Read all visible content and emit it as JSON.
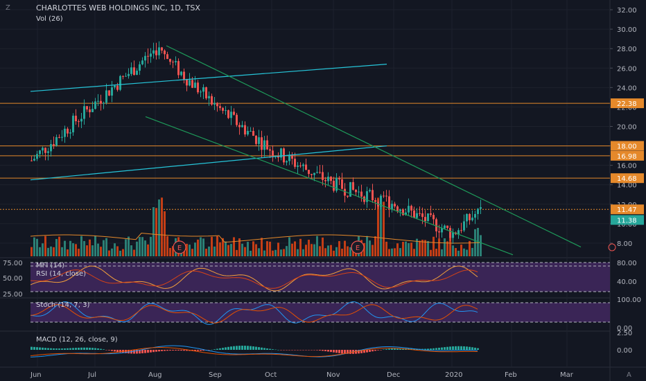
{
  "header": {
    "title": "CHARLOTTES WEB HOLDINGS INC, 1D, TSX",
    "vol_label": "Vol (26)"
  },
  "colors": {
    "background": "#131722",
    "up": "#26a69a",
    "down": "#ef5350",
    "vol_up": "#2f8c7e",
    "vol_down": "#d84315",
    "trend_cyan": "#26c6da",
    "trend_green": "#1e9b5a",
    "hline": "#e5892b",
    "purple_band": "#3a2556",
    "mfi_line": "#f3a03b",
    "rsi_line": "#d84315",
    "stoch_k": "#2196f3",
    "stoch_d": "#e65100",
    "macd_line": "#2196f3",
    "signal_line": "#e65100"
  },
  "chart_data": [
    {
      "type": "candlestick",
      "title": "CHARLOTTES WEB HOLDINGS INC, 1D, TSX",
      "x_tick_labels": [
        "Jun",
        "Jul",
        "Aug",
        "Sep",
        "Oct",
        "Nov",
        "Dec",
        "2020",
        "Feb",
        "Mar"
      ],
      "y_tick_labels": [
        "32.00",
        "30.00",
        "28.00",
        "26.00",
        "24.00",
        "22.00",
        "20.00",
        "18.00",
        "16.00",
        "14.00",
        "12.00",
        "10.00",
        "8.00"
      ],
      "ylim": [
        6.5,
        33.0
      ],
      "price_tags": [
        {
          "value": 22.38,
          "label": "22.38",
          "color": "#e5892b"
        },
        {
          "value": 18.0,
          "label": "18.00",
          "color": "#e5892b"
        },
        {
          "value": 16.98,
          "label": "16.98",
          "color": "#e5892b"
        },
        {
          "value": 14.68,
          "label": "14.68",
          "color": "#e5892b"
        },
        {
          "value": 11.47,
          "label": "11.47",
          "color": "#e5892b"
        },
        {
          "value": 11.38,
          "label": "11.38",
          "color": "#26a69a"
        }
      ],
      "horizontal_levels": [
        22.38,
        18.0,
        16.98,
        14.68,
        11.47
      ],
      "monthly_path": [
        {
          "month": "Jun",
          "close": 16.5
        },
        {
          "month": "Jul",
          "close": 22.5
        },
        {
          "month": "Aug",
          "close": 28.0
        },
        {
          "month": "Sep",
          "close": 22.0
        },
        {
          "month": "Oct",
          "close": 17.5
        },
        {
          "month": "Nov",
          "close": 14.0
        },
        {
          "month": "Dec",
          "close": 12.0
        },
        {
          "month": "2020",
          "close": 9.0
        },
        {
          "month": "Jan end",
          "close": 11.47
        }
      ],
      "earnings_markers": [
        "E",
        "E"
      ]
    },
    {
      "type": "line",
      "title": "MFI (14)",
      "series_names": [
        "MFI (14)",
        "RSI (14, close)"
      ],
      "left_tick_labels": [
        "75.00",
        "50.00",
        "25.00"
      ],
      "right_tick_labels": [
        "80.00",
        "40.00"
      ],
      "ylim": [
        10,
        90
      ]
    },
    {
      "type": "line",
      "title": "Stoch (14, 7, 3)",
      "right_tick_labels": [
        "100.00",
        "0.00"
      ],
      "ylim": [
        -10,
        110
      ]
    },
    {
      "type": "bar",
      "title": "MACD (12, 26, close, 9)",
      "right_tick_labels": [
        "2.50",
        "0.00"
      ],
      "ylim": [
        -2.5,
        3.0
      ]
    }
  ],
  "panes": {
    "mfi_title": "MFI (14)",
    "rsi_title": "RSI (14, close)",
    "stoch_title": "Stoch (14, 7, 3)",
    "macd_title": "MACD (12, 26, close, 9)"
  },
  "icons": {
    "corner_left": "Z",
    "corner_right": "A",
    "earnings_marker": "E"
  }
}
